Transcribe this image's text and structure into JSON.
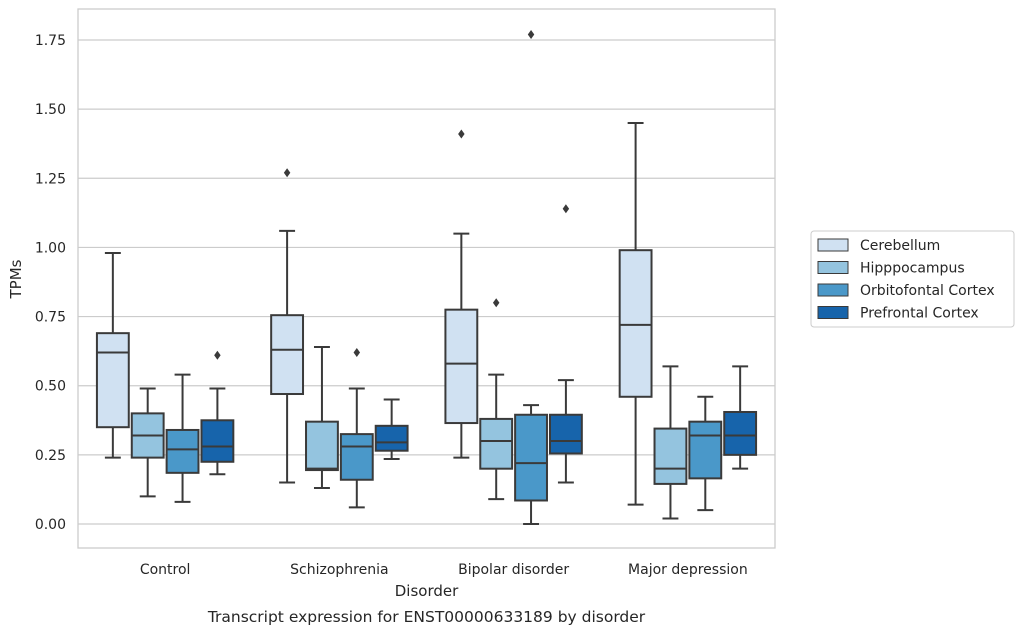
{
  "chart_data": {
    "type": "boxplot",
    "title": "Transcript expression for ENST00000633189 by disorder",
    "xlabel": "Disorder",
    "ylabel": "TPMs",
    "ylim": [
      -0.085,
      1.855
    ],
    "yticks": [
      0.0,
      0.25,
      0.5,
      0.75,
      1.0,
      1.25,
      1.5,
      1.75
    ],
    "ytick_labels": [
      "0.00",
      "0.25",
      "0.50",
      "0.75",
      "1.00",
      "1.25",
      "1.50",
      "1.75"
    ],
    "grid": "horizontal",
    "legend_position": "right",
    "categories": [
      "Control",
      "Schizophrenia",
      "Bipolar disorder",
      "Major depression"
    ],
    "series": [
      {
        "name": "Cerebellum",
        "color": "#d0e1f2",
        "boxes": [
          {
            "whislo": 0.24,
            "q1": 0.35,
            "med": 0.62,
            "q3": 0.69,
            "whishi": 0.98,
            "fliers": []
          },
          {
            "whislo": 0.15,
            "q1": 0.47,
            "med": 0.63,
            "q3": 0.755,
            "whishi": 1.06,
            "fliers": [
              1.27
            ]
          },
          {
            "whislo": 0.24,
            "q1": 0.365,
            "med": 0.58,
            "q3": 0.775,
            "whishi": 1.05,
            "fliers": [
              1.41
            ]
          },
          {
            "whislo": 0.07,
            "q1": 0.46,
            "med": 0.72,
            "q3": 0.99,
            "whishi": 1.45,
            "fliers": []
          }
        ]
      },
      {
        "name": "Hipppocampus",
        "color": "#94c4df",
        "boxes": [
          {
            "whislo": 0.1,
            "q1": 0.24,
            "med": 0.32,
            "q3": 0.4,
            "whishi": 0.49,
            "fliers": []
          },
          {
            "whislo": 0.13,
            "q1": 0.195,
            "med": 0.2,
            "q3": 0.37,
            "whishi": 0.64,
            "fliers": []
          },
          {
            "whislo": 0.09,
            "q1": 0.2,
            "med": 0.3,
            "q3": 0.38,
            "whishi": 0.54,
            "fliers": [
              0.8
            ]
          },
          {
            "whislo": 0.02,
            "q1": 0.145,
            "med": 0.2,
            "q3": 0.345,
            "whishi": 0.57,
            "fliers": []
          }
        ]
      },
      {
        "name": "Orbitofontal Cortex",
        "color": "#4a98c9",
        "boxes": [
          {
            "whislo": 0.08,
            "q1": 0.185,
            "med": 0.27,
            "q3": 0.34,
            "whishi": 0.54,
            "fliers": []
          },
          {
            "whislo": 0.06,
            "q1": 0.16,
            "med": 0.28,
            "q3": 0.325,
            "whishi": 0.49,
            "fliers": [
              0.62
            ]
          },
          {
            "whislo": 0.0,
            "q1": 0.085,
            "med": 0.22,
            "q3": 0.395,
            "whishi": 0.43,
            "fliers": [
              1.77
            ]
          },
          {
            "whislo": 0.05,
            "q1": 0.165,
            "med": 0.32,
            "q3": 0.37,
            "whishi": 0.46,
            "fliers": []
          }
        ]
      },
      {
        "name": "Prefrontal Cortex",
        "color": "#1764ab",
        "boxes": [
          {
            "whislo": 0.18,
            "q1": 0.225,
            "med": 0.28,
            "q3": 0.375,
            "whishi": 0.49,
            "fliers": [
              0.61
            ]
          },
          {
            "whislo": 0.235,
            "q1": 0.265,
            "med": 0.295,
            "q3": 0.355,
            "whishi": 0.45,
            "fliers": []
          },
          {
            "whislo": 0.15,
            "q1": 0.255,
            "med": 0.3,
            "q3": 0.395,
            "whishi": 0.52,
            "fliers": [
              1.14
            ]
          },
          {
            "whislo": 0.2,
            "q1": 0.25,
            "med": 0.32,
            "q3": 0.405,
            "whishi": 0.57,
            "fliers": []
          }
        ]
      }
    ]
  }
}
